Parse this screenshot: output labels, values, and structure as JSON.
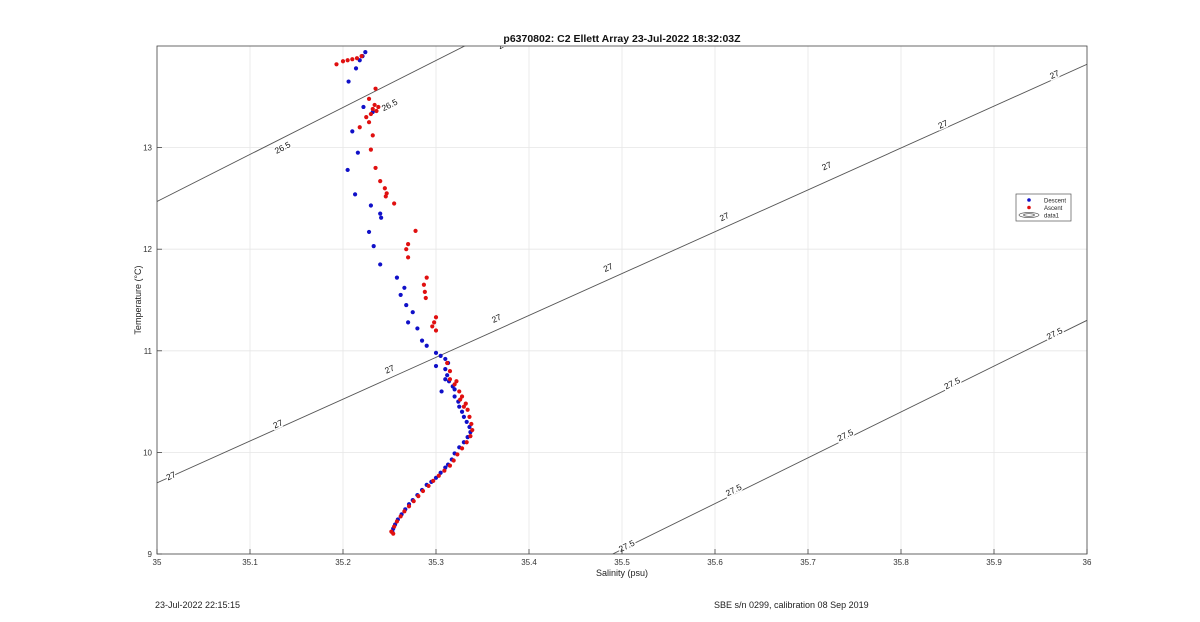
{
  "chart_data": {
    "type": "scatter",
    "title": "p6370802: C2 Ellett Array 23-Jul-2022 18:32:03Z",
    "xlabel": "Salinity (psu)",
    "ylabel": "Temperature (°C)",
    "xlim": [
      35,
      36
    ],
    "ylim": [
      9,
      14
    ],
    "xticks": [
      "35",
      "35.1",
      "35.2",
      "35.3",
      "35.4",
      "35.5",
      "35.6",
      "35.7",
      "35.8",
      "35.9",
      "36"
    ],
    "yticks": [
      "9",
      "10",
      "11",
      "12",
      "13"
    ],
    "grid": true,
    "legend_position": "right",
    "legend": [
      "Descent",
      "Ascent",
      "data1"
    ],
    "colors": {
      "descent": "#1010c8",
      "ascent": "#e01010",
      "contour": "#555555"
    },
    "series": [
      {
        "name": "Descent",
        "points": [
          [
            35.224,
            13.94
          ],
          [
            35.221,
            13.9
          ],
          [
            35.218,
            13.86
          ],
          [
            35.206,
            13.65
          ],
          [
            35.214,
            13.78
          ],
          [
            35.222,
            13.4
          ],
          [
            35.232,
            13.35
          ],
          [
            35.21,
            13.16
          ],
          [
            35.216,
            12.95
          ],
          [
            35.205,
            12.78
          ],
          [
            35.213,
            12.54
          ],
          [
            35.23,
            12.43
          ],
          [
            35.24,
            12.35
          ],
          [
            35.241,
            12.31
          ],
          [
            35.228,
            12.17
          ],
          [
            35.233,
            12.03
          ],
          [
            35.24,
            11.85
          ],
          [
            35.258,
            11.72
          ],
          [
            35.266,
            11.62
          ],
          [
            35.262,
            11.55
          ],
          [
            35.268,
            11.45
          ],
          [
            35.275,
            11.38
          ],
          [
            35.27,
            11.28
          ],
          [
            35.28,
            11.22
          ],
          [
            35.285,
            11.1
          ],
          [
            35.29,
            11.05
          ],
          [
            35.3,
            10.98
          ],
          [
            35.305,
            10.95
          ],
          [
            35.31,
            10.92
          ],
          [
            35.313,
            10.88
          ],
          [
            35.31,
            10.82
          ],
          [
            35.312,
            10.76
          ],
          [
            35.314,
            10.7
          ],
          [
            35.318,
            10.65
          ],
          [
            35.32,
            10.55
          ],
          [
            35.324,
            10.5
          ],
          [
            35.325,
            10.45
          ],
          [
            35.328,
            10.4
          ],
          [
            35.33,
            10.35
          ],
          [
            35.333,
            10.3
          ],
          [
            35.336,
            10.25
          ],
          [
            35.337,
            10.2
          ],
          [
            35.334,
            10.15
          ],
          [
            35.33,
            10.1
          ],
          [
            35.325,
            10.05
          ],
          [
            35.32,
            9.99
          ],
          [
            35.317,
            9.93
          ],
          [
            35.313,
            9.88
          ],
          [
            35.31,
            9.85
          ],
          [
            35.305,
            9.8
          ],
          [
            35.3,
            9.75
          ],
          [
            35.295,
            9.71
          ],
          [
            35.29,
            9.68
          ],
          [
            35.285,
            9.63
          ],
          [
            35.28,
            9.58
          ],
          [
            35.275,
            9.53
          ],
          [
            35.271,
            9.49
          ],
          [
            35.267,
            9.44
          ],
          [
            35.263,
            9.39
          ],
          [
            35.259,
            9.34
          ],
          [
            35.256,
            9.29
          ],
          [
            35.254,
            9.25
          ],
          [
            35.253,
            9.22
          ],
          [
            35.3,
            10.85
          ],
          [
            35.306,
            10.6
          ],
          [
            35.31,
            10.72
          ],
          [
            35.32,
            10.62
          ]
        ]
      },
      {
        "name": "Ascent",
        "points": [
          [
            35.193,
            13.82
          ],
          [
            35.2,
            13.85
          ],
          [
            35.205,
            13.86
          ],
          [
            35.21,
            13.87
          ],
          [
            35.215,
            13.88
          ],
          [
            35.22,
            13.9
          ],
          [
            35.235,
            13.58
          ],
          [
            35.228,
            13.48
          ],
          [
            35.234,
            13.42
          ],
          [
            35.238,
            13.4
          ],
          [
            35.232,
            13.38
          ],
          [
            35.236,
            13.36
          ],
          [
            35.23,
            13.33
          ],
          [
            35.225,
            13.3
          ],
          [
            35.228,
            13.25
          ],
          [
            35.218,
            13.2
          ],
          [
            35.232,
            13.12
          ],
          [
            35.23,
            12.98
          ],
          [
            35.235,
            12.8
          ],
          [
            35.24,
            12.67
          ],
          [
            35.245,
            12.6
          ],
          [
            35.247,
            12.55
          ],
          [
            35.246,
            12.52
          ],
          [
            35.255,
            12.45
          ],
          [
            35.278,
            12.18
          ],
          [
            35.27,
            12.05
          ],
          [
            35.268,
            12.0
          ],
          [
            35.27,
            11.92
          ],
          [
            35.29,
            11.72
          ],
          [
            35.287,
            11.65
          ],
          [
            35.288,
            11.58
          ],
          [
            35.289,
            11.52
          ],
          [
            35.3,
            11.33
          ],
          [
            35.298,
            11.28
          ],
          [
            35.296,
            11.24
          ],
          [
            35.3,
            11.2
          ],
          [
            35.312,
            10.88
          ],
          [
            35.315,
            10.8
          ],
          [
            35.315,
            10.72
          ],
          [
            35.32,
            10.67
          ],
          [
            35.325,
            10.6
          ],
          [
            35.328,
            10.55
          ],
          [
            35.332,
            10.48
          ],
          [
            35.334,
            10.42
          ],
          [
            35.336,
            10.35
          ],
          [
            35.338,
            10.28
          ],
          [
            35.339,
            10.22
          ],
          [
            35.337,
            10.16
          ],
          [
            35.333,
            10.1
          ],
          [
            35.328,
            10.04
          ],
          [
            35.323,
            9.98
          ],
          [
            35.319,
            9.92
          ],
          [
            35.315,
            9.87
          ],
          [
            35.309,
            9.82
          ],
          [
            35.303,
            9.77
          ],
          [
            35.297,
            9.72
          ],
          [
            35.292,
            9.67
          ],
          [
            35.286,
            9.62
          ],
          [
            35.281,
            9.57
          ],
          [
            35.276,
            9.52
          ],
          [
            35.271,
            9.47
          ],
          [
            35.266,
            9.42
          ],
          [
            35.262,
            9.37
          ],
          [
            35.258,
            9.32
          ],
          [
            35.255,
            9.27
          ],
          [
            35.252,
            9.22
          ],
          [
            35.254,
            9.2
          ],
          [
            35.33,
            10.45
          ],
          [
            35.322,
            10.7
          ],
          [
            35.326,
            10.52
          ]
        ]
      }
    ],
    "contours": [
      {
        "level": "26.5",
        "line": [
          [
            35.0,
            12.47
          ],
          [
            35.4,
            14.32
          ]
        ],
        "labels": [
          [
            35.135,
            13.0
          ],
          [
            35.375,
            14.03
          ],
          [
            35.25,
            13.42
          ]
        ]
      },
      {
        "level": "27",
        "line": [
          [
            35.0,
            9.7
          ],
          [
            36.0,
            13.82
          ]
        ],
        "labels": [
          [
            35.015,
            9.77
          ],
          [
            35.13,
            10.28
          ],
          [
            35.25,
            10.82
          ],
          [
            35.365,
            11.32
          ],
          [
            35.485,
            11.82
          ],
          [
            35.61,
            12.32
          ],
          [
            35.72,
            12.82
          ],
          [
            35.845,
            13.23
          ],
          [
            35.965,
            13.72
          ]
        ]
      },
      {
        "level": "27.5",
        "line": [
          [
            35.49,
            9.0
          ],
          [
            36.0,
            11.3
          ]
        ],
        "labels": [
          [
            35.505,
            9.08
          ],
          [
            35.62,
            9.63
          ],
          [
            35.74,
            10.17
          ],
          [
            35.855,
            10.68
          ],
          [
            35.965,
            11.17
          ]
        ]
      }
    ]
  },
  "footer": {
    "left": "23-Jul-2022 22:15:15",
    "right": "SBE s/n 0299, calibration 08 Sep 2019"
  }
}
